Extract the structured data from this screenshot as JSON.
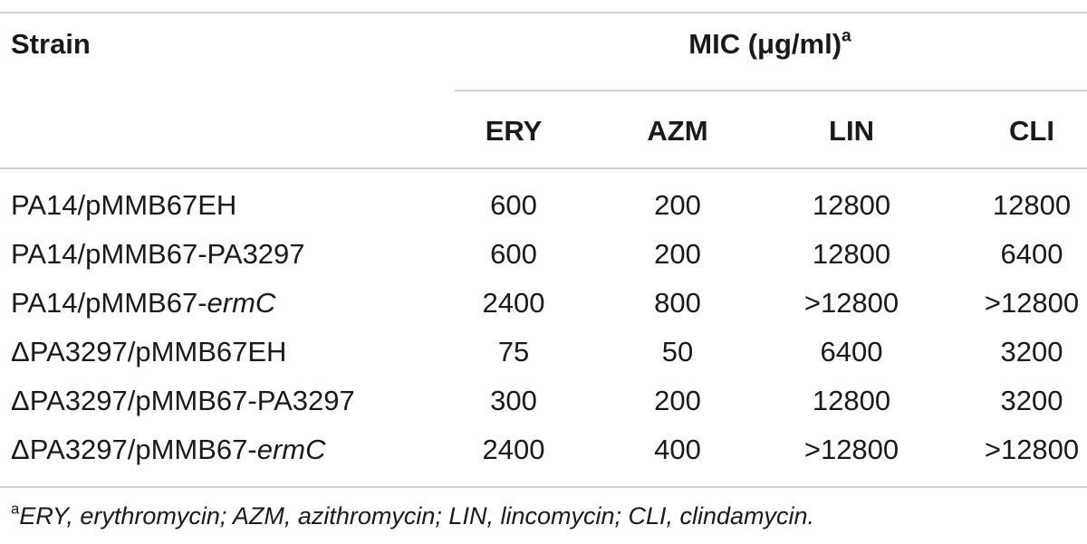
{
  "table": {
    "header": {
      "strain_label": "Strain",
      "mic_label": "MIC (μg/ml)",
      "mic_footnote_marker": "a",
      "columns": [
        "ERY",
        "AZM",
        "LIN",
        "CLI"
      ]
    },
    "rows": [
      {
        "strain_prefix": "PA14/pMMB67EH",
        "strain_italic": "",
        "values": [
          "600",
          "200",
          "12800",
          "12800"
        ]
      },
      {
        "strain_prefix": "PA14/pMMB67-PA3297",
        "strain_italic": "",
        "values": [
          "600",
          "200",
          "12800",
          "6400"
        ]
      },
      {
        "strain_prefix": "PA14/pMMB67-",
        "strain_italic": "ermC",
        "values": [
          "2400",
          "800",
          ">12800",
          ">12800"
        ]
      },
      {
        "strain_prefix": "ΔPA3297/pMMB67EH",
        "strain_italic": "",
        "values": [
          "75",
          "50",
          "6400",
          "3200"
        ]
      },
      {
        "strain_prefix": "ΔPA3297/pMMB67-PA3297",
        "strain_italic": "",
        "values": [
          "300",
          "200",
          "12800",
          "3200"
        ]
      },
      {
        "strain_prefix": "ΔPA3297/pMMB67-",
        "strain_italic": "ermC",
        "values": [
          "2400",
          "400",
          ">12800",
          ">12800"
        ]
      }
    ],
    "footnote": {
      "marker": "a",
      "text": "ERY, erythromycin; AZM, azithromycin; LIN, lincomycin; CLI, clindamycin."
    }
  }
}
